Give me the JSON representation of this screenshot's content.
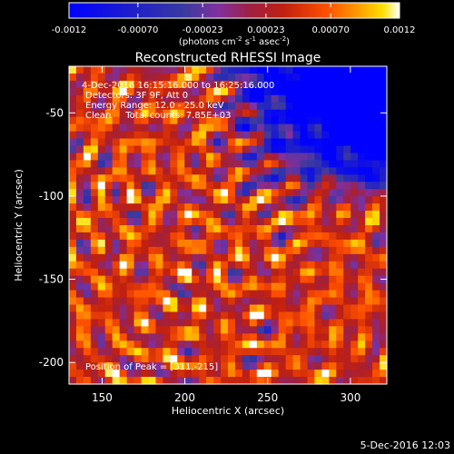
{
  "colorbar": {
    "ticks": [
      -0.0012,
      -0.0007,
      -0.00023,
      0.00023,
      0.0007,
      0.0012
    ],
    "tick_labels": [
      "-0.0012",
      "-0.00070",
      "-0.00023",
      "0.00023",
      "0.00070",
      "0.0012"
    ],
    "units_main": "(photons cm",
    "units_sup1": "-2",
    "units_mid": " s",
    "units_sup2": "-1",
    "units_mid2": " asec",
    "units_sup3": "-2",
    "units_end": ")",
    "colors": [
      "#0000ff",
      "#2020c8",
      "#3a3aa0",
      "#8030a0",
      "#a02040",
      "#c02010",
      "#ff5000",
      "#ffa000",
      "#ffe000",
      "#ffffff"
    ]
  },
  "footer_text": "5-Dec-2016 12:03",
  "chart_data": {
    "type": "heatmap",
    "title": "Reconstructed RHESSI Image",
    "xlabel": "Heliocentric X (arcsec)",
    "ylabel": "Heliocentric Y (arcsec)",
    "xlim": [
      130,
      322
    ],
    "ylim": [
      -213,
      -22
    ],
    "xticks": [
      150,
      200,
      250,
      300
    ],
    "yticks": [
      -50,
      -100,
      -150,
      -200
    ],
    "annotations": [
      "4-Dec-2016 16:15:16.000 to 16:25:16.000",
      "Detectors: 3F 9F, Att 0",
      "Energy Range: 12.0 - 25.0 keV",
      "Clean     Total counts: 7.85E+03"
    ],
    "peak_label": "Position of Peak = [311,-215]",
    "peak_position": [
      311,
      -215
    ],
    "total_counts": 7850,
    "energy_range_kev": [
      12.0,
      25.0
    ],
    "time_range": [
      "4-Dec-2016 16:15:16.000",
      "16:25:16.000"
    ]
  }
}
